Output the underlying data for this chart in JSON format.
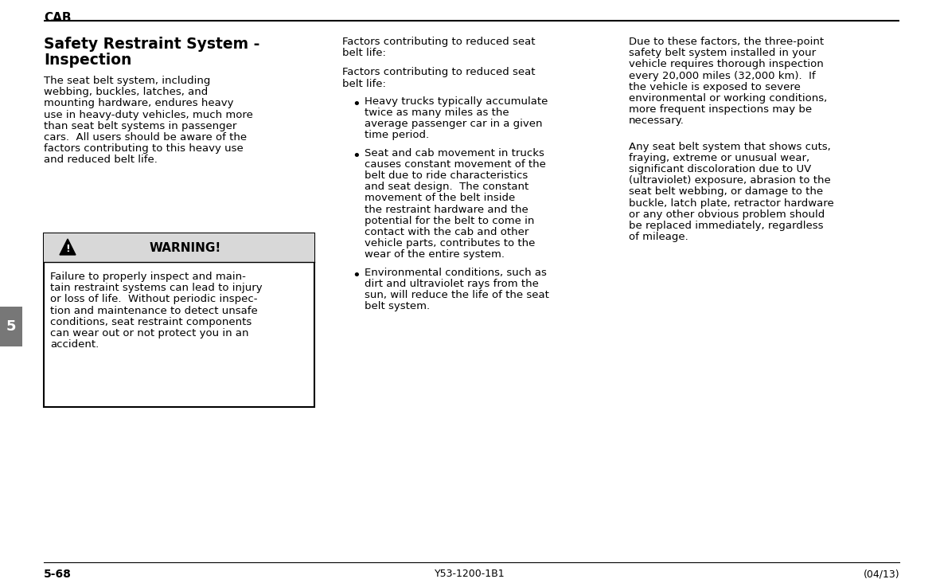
{
  "bg_color": "#ffffff",
  "text_color": "#000000",
  "header_text": "CAB",
  "section_title_line1": "Safety Restraint System -",
  "section_title_line2": "Inspection",
  "col1_body_lines": [
    "The seat belt system, including",
    "webbing, buckles, latches, and",
    "mounting hardware, endures heavy",
    "use in heavy-duty vehicles, much more",
    "than seat belt systems in passenger",
    "cars.  All users should be aware of the",
    "factors contributing to this heavy use",
    "and reduced belt life."
  ],
  "warning_title": "WARNING!",
  "warning_body_lines": [
    "Failure to properly inspect and main-",
    "tain restraint systems can lead to injury",
    "or loss of life.  Without periodic inspec-",
    "tion and maintenance to detect unsafe",
    "conditions, seat restraint components",
    "can wear out or not protect you in an",
    "accident."
  ],
  "col2_header1_lines": [
    "Factors contributing to reduced seat",
    "belt life:"
  ],
  "col2_header2_lines": [
    "Factors contributing to reduced seat",
    "belt life:"
  ],
  "bullet1_lines": [
    "Heavy trucks typically accumulate",
    "twice as many miles as the",
    "average passenger car in a given",
    "time period."
  ],
  "bullet2_lines": [
    "Seat and cab movement in trucks",
    "causes constant movement of the",
    "belt due to ride characteristics",
    "and seat design.  The constant",
    "movement of the belt inside",
    "the restraint hardware and the",
    "potential for the belt to come in",
    "contact with the cab and other",
    "vehicle parts, contributes to the",
    "wear of the entire system."
  ],
  "bullet3_lines": [
    "Environmental conditions, such as",
    "dirt and ultraviolet rays from the",
    "sun, will reduce the life of the seat",
    "belt system."
  ],
  "col3_para1_lines": [
    "Due to these factors, the three-point",
    "safety belt system installed in your",
    "vehicle requires thorough inspection",
    "every 20,000 miles (32,000 km).  If",
    "the vehicle is exposed to severe",
    "environmental or working conditions,",
    "more frequent inspections may be",
    "necessary."
  ],
  "col3_para2_lines": [
    "Any seat belt system that shows cuts,",
    "fraying, extreme or unusual wear,",
    "significant discoloration due to UV",
    "(ultraviolet) exposure, abrasion to the",
    "seat belt webbing, or damage to the",
    "buckle, latch plate, retractor hardware",
    "or any other obvious problem should",
    "be replaced immediately, regardless",
    "of mileage."
  ],
  "footer_left": "5-68",
  "footer_center": "Y53-1200-1B1",
  "footer_right": "(04/13)",
  "tab_number": "5",
  "warn_box_color": "#d8d8d8",
  "tab_color": "#777777"
}
